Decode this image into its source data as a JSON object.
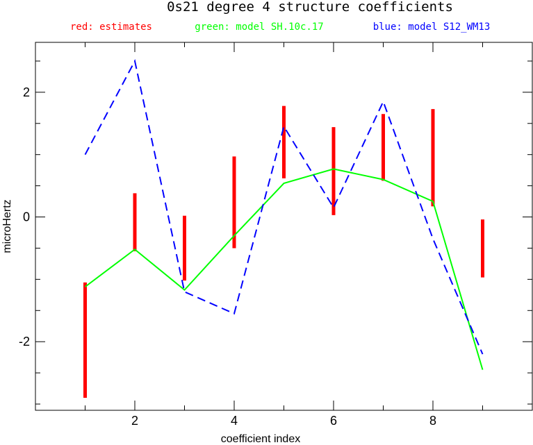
{
  "chart_data": {
    "type": "line",
    "title": "0s21 degree 4 structure coefficients",
    "xlabel": "coefficient index",
    "ylabel": "microHertz",
    "xlim": [
      0,
      10
    ],
    "ylim": [
      -3.1,
      2.8
    ],
    "xticks": [
      2,
      4,
      6,
      8
    ],
    "yticks": [
      2,
      0,
      -2
    ],
    "xtick_labels": [
      "2",
      "4",
      "6",
      "8"
    ],
    "ytick_labels": [
      "2",
      "0",
      "-2"
    ],
    "grid": false,
    "legend_position": "top",
    "legend": [
      {
        "label": "red: estimates",
        "color": "#ff0000"
      },
      {
        "label": "green: model SH.10c.17",
        "color": "#00ff00"
      },
      {
        "label": "blue: model S12_WM13",
        "color": "#0000ff"
      }
    ],
    "series": [
      {
        "name": "estimates",
        "kind": "error_bars",
        "color": "#ff0000",
        "x": [
          1,
          2,
          3,
          4,
          5,
          6,
          7,
          8,
          9
        ],
        "low": [
          -2.9,
          -0.55,
          -1.02,
          -0.5,
          0.62,
          0.03,
          0.58,
          0.17,
          -0.97
        ],
        "high": [
          -1.05,
          0.38,
          0.02,
          0.97,
          1.78,
          1.44,
          1.65,
          1.73,
          -0.04
        ]
      },
      {
        "name": "model SH.10c.17",
        "kind": "line",
        "color": "#00ff00",
        "dashed": false,
        "x": [
          1,
          2,
          3,
          4,
          5,
          6,
          7,
          8,
          9
        ],
        "values": [
          -1.12,
          -0.52,
          -1.17,
          -0.3,
          0.54,
          0.77,
          0.6,
          0.25,
          -2.45
        ]
      },
      {
        "name": "model S12_WM13",
        "kind": "line",
        "color": "#0000ff",
        "dashed": true,
        "x": [
          1,
          2,
          3,
          4,
          5,
          6,
          7,
          8,
          9
        ],
        "values": [
          1.0,
          2.5,
          -1.2,
          -1.55,
          1.45,
          0.15,
          1.85,
          -0.35,
          -2.2
        ]
      }
    ]
  }
}
